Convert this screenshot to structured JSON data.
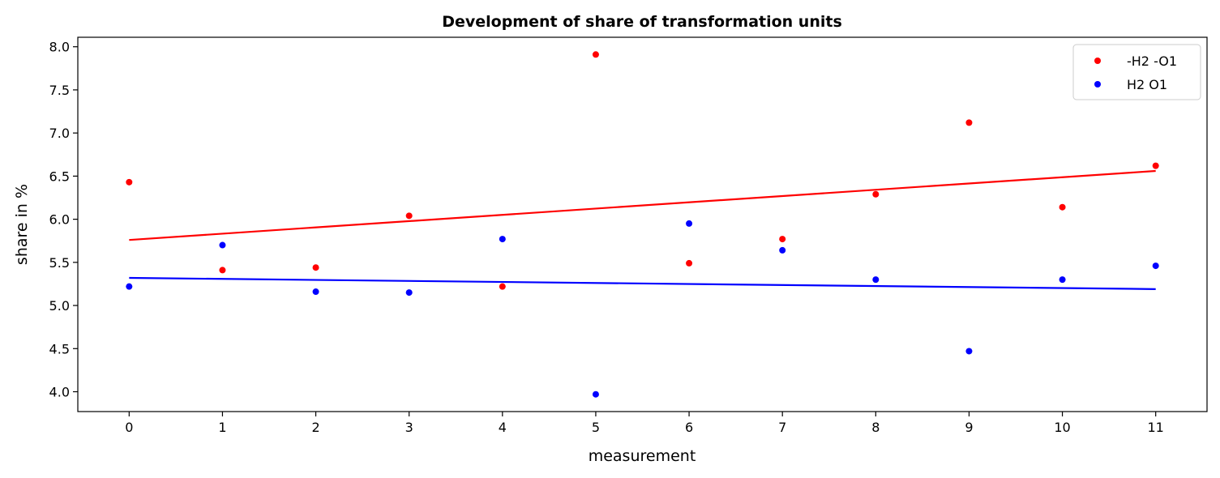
{
  "chart_data": {
    "type": "scatter",
    "title": "Development of share of transformation units",
    "xlabel": "measurement",
    "ylabel": "share in %",
    "xlim": [
      -0.55,
      11.55
    ],
    "ylim": [
      3.77,
      8.11
    ],
    "xticks": [
      0,
      1,
      2,
      3,
      4,
      5,
      6,
      7,
      8,
      9,
      10,
      11
    ],
    "xtick_labels": [
      "0",
      "1",
      "2",
      "3",
      "4",
      "5",
      "6",
      "7",
      "8",
      "9",
      "10",
      "11"
    ],
    "yticks": [
      4.0,
      4.5,
      5.0,
      5.5,
      6.0,
      6.5,
      7.0,
      7.5,
      8.0
    ],
    "ytick_labels": [
      "4.0",
      "4.5",
      "5.0",
      "5.5",
      "6.0",
      "6.5",
      "7.0",
      "7.5",
      "8.0"
    ],
    "grid": false,
    "legend_position": "top-right",
    "series": [
      {
        "name": "-H2 -O1",
        "color": "#ff0000",
        "x": [
          0,
          1,
          2,
          3,
          4,
          5,
          6,
          7,
          8,
          9,
          10,
          11
        ],
        "y": [
          6.43,
          5.41,
          5.44,
          6.04,
          5.22,
          7.91,
          5.49,
          5.77,
          6.29,
          7.12,
          6.14,
          6.62
        ],
        "trend": [
          5.76,
          6.56
        ]
      },
      {
        "name": "H2 O1",
        "color": "#0000ff",
        "x": [
          0,
          1,
          2,
          3,
          4,
          5,
          6,
          7,
          8,
          9,
          10,
          11
        ],
        "y": [
          5.22,
          5.7,
          5.16,
          5.15,
          5.77,
          3.97,
          5.95,
          5.64,
          5.3,
          4.47,
          5.3,
          5.46
        ],
        "trend": [
          5.32,
          5.19
        ]
      }
    ]
  }
}
